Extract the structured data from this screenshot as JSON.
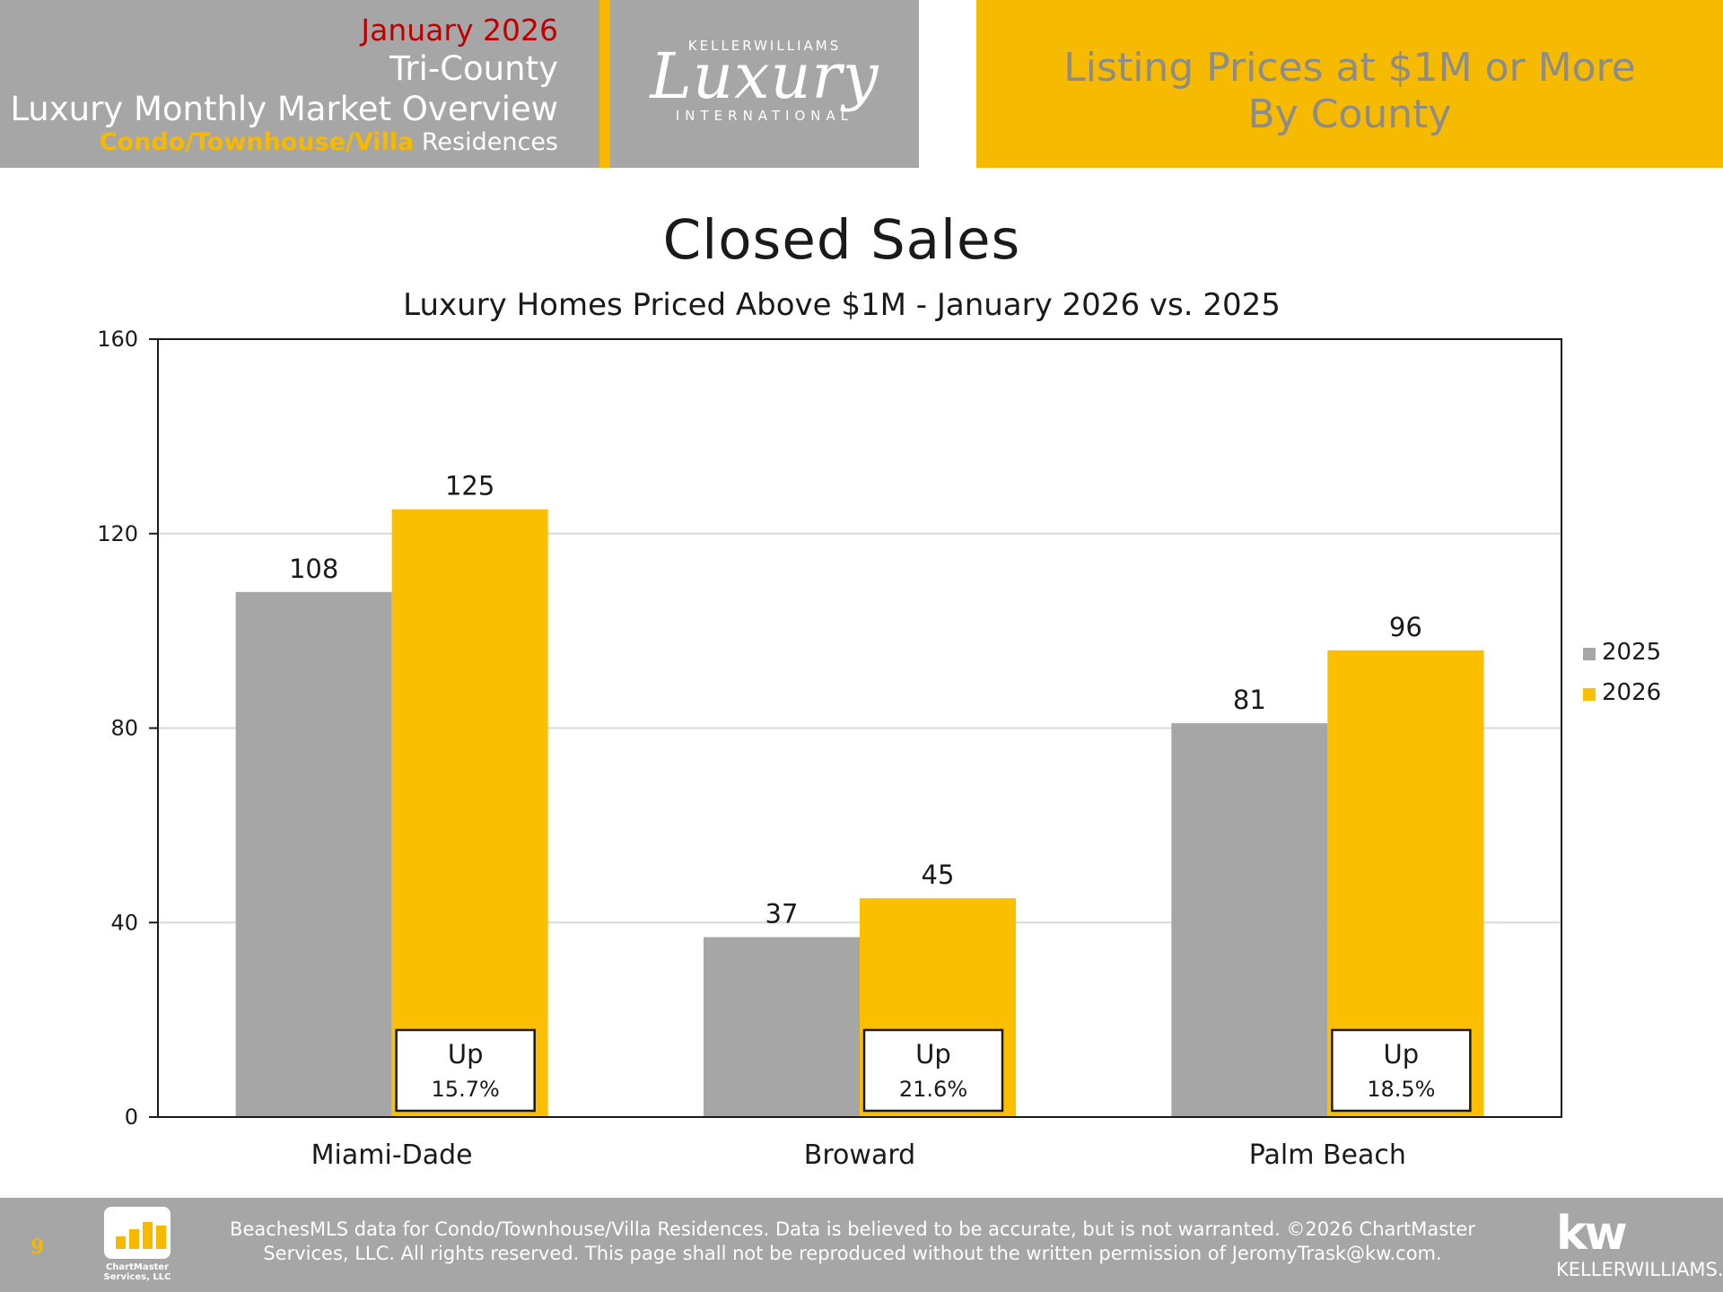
{
  "header": {
    "date": "January 2026",
    "region": "Tri-County",
    "title": "Luxury Monthly Market Overview",
    "type_accent": "Condo/Townhouse/Villa",
    "type_rest": " Residences",
    "logo_top": "KELLERWILLIAMS",
    "logo_script": "Luxury",
    "logo_bottom": "INTERNATIONAL",
    "right_line1": "Listing Prices at $1M or More",
    "right_line2": "By County"
  },
  "colors": {
    "series_2025": "#a6a6a6",
    "series_2026": "#fcbf00",
    "header_gray": "#a6a6a6",
    "accent_yellow": "#f6ba00",
    "date_red": "#c00000"
  },
  "chart_data": {
    "type": "bar",
    "title": "Closed Sales",
    "subtitle": "Luxury Homes Priced Above $1M - January 2026 vs. 2025",
    "categories": [
      "Miami-Dade",
      "Broward",
      "Palm Beach"
    ],
    "series": [
      {
        "name": "2025",
        "values": [
          108,
          37,
          81
        ]
      },
      {
        "name": "2026",
        "values": [
          125,
          45,
          96
        ]
      }
    ],
    "ylim": [
      0,
      160
    ],
    "yticks": [
      0,
      40,
      80,
      120,
      160
    ],
    "grid": true,
    "legend": "right",
    "annotations": [
      {
        "line1": "Up",
        "line2": "15.7%"
      },
      {
        "line1": "Up",
        "line2": "21.6%"
      },
      {
        "line1": "Up",
        "line2": "18.5%"
      }
    ]
  },
  "footer": {
    "page_number": "9",
    "chartmaster_name_1": "ChartMaster",
    "chartmaster_name_2": "Services, LLC",
    "line1": "BeachesMLS data for Condo/Townhouse/Villa Residences.  Data is believed to be accurate, but is not warranted.   ©2026  ChartMaster",
    "line2": "Services, LLC.  All rights reserved. This page shall not be reproduced without the written permission of JeromyTrask@kw.com.",
    "kw_mark": "kw",
    "kw_name": "KELLERWILLIAMS."
  }
}
